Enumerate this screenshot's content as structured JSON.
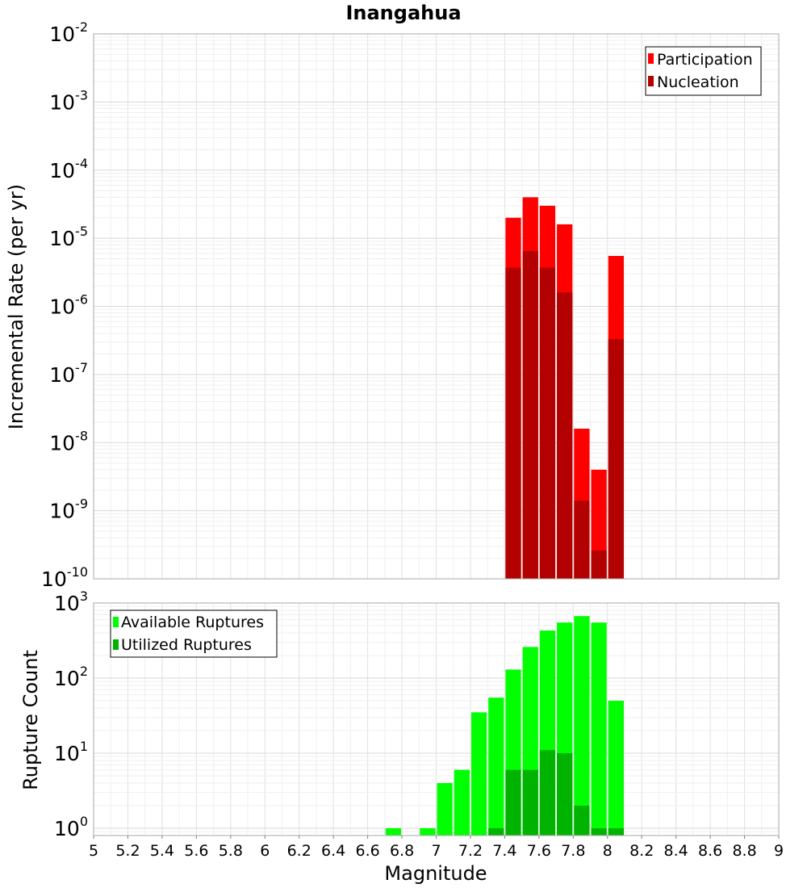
{
  "chart_data": [
    {
      "type": "bar",
      "scale": "log",
      "title": "Inangahua",
      "xlabel": "",
      "ylabel": "Incremental Rate (per yr)",
      "xlim": [
        5,
        9
      ],
      "ylim": [
        1e-10,
        0.01
      ],
      "grid": true,
      "bar_width": 0.1,
      "y_ticks": [
        {
          "base": "10",
          "exp": "-2"
        },
        {
          "base": "10",
          "exp": "-3"
        },
        {
          "base": "10",
          "exp": "-4"
        },
        {
          "base": "10",
          "exp": "-5"
        },
        {
          "base": "10",
          "exp": "-6"
        },
        {
          "base": "10",
          "exp": "-7"
        },
        {
          "base": "10",
          "exp": "-8"
        },
        {
          "base": "10",
          "exp": "-9"
        },
        {
          "base": "10",
          "exp": "-10"
        }
      ],
      "legend_position": "top-right",
      "series": [
        {
          "name": "Participation",
          "color": "#ff0000",
          "x": [
            7.45,
            7.55,
            7.65,
            7.75,
            7.85,
            7.95,
            8.05
          ],
          "values": [
            2e-05,
            4e-05,
            3e-05,
            1.6e-05,
            1.6e-08,
            4e-09,
            5.5e-06
          ]
        },
        {
          "name": "Nucleation",
          "color": "#b30000",
          "x": [
            7.45,
            7.55,
            7.65,
            7.75,
            7.85,
            7.95,
            8.05
          ],
          "values": [
            3.7e-06,
            6.5e-06,
            3.7e-06,
            1.6e-06,
            1.4e-09,
            2.6e-10,
            3.3e-07
          ]
        }
      ]
    },
    {
      "type": "bar",
      "scale": "log",
      "title": "",
      "xlabel": "Magnitude",
      "ylabel": "Rupture Count",
      "xlim": [
        5,
        9
      ],
      "ylim": [
        0.8,
        1000
      ],
      "grid": true,
      "bar_width": 0.1,
      "x_ticks": [
        "5",
        "5.2",
        "5.4",
        "5.6",
        "5.8",
        "6",
        "6.2",
        "6.4",
        "6.6",
        "6.8",
        "7",
        "7.2",
        "7.4",
        "7.6",
        "7.8",
        "8",
        "8.2",
        "8.4",
        "8.6",
        "8.8",
        "9"
      ],
      "y_ticks": [
        {
          "base": "10",
          "exp": "3"
        },
        {
          "base": "10",
          "exp": "2"
        },
        {
          "base": "10",
          "exp": "1"
        },
        {
          "base": "10",
          "exp": "0"
        }
      ],
      "legend_position": "top-left",
      "series": [
        {
          "name": "Available Ruptures",
          "color": "#00ff00",
          "x": [
            6.75,
            6.95,
            7.05,
            7.15,
            7.25,
            7.35,
            7.45,
            7.55,
            7.65,
            7.75,
            7.85,
            7.95,
            8.05
          ],
          "values": [
            1,
            1,
            4,
            6,
            35,
            55,
            130,
            260,
            430,
            550,
            670,
            550,
            50
          ]
        },
        {
          "name": "Utilized Ruptures",
          "color": "#00b300",
          "x": [
            7.35,
            7.45,
            7.55,
            7.65,
            7.75,
            7.85,
            7.95,
            8.05
          ],
          "values": [
            1,
            6,
            6,
            11,
            10,
            2,
            1,
            1
          ]
        }
      ]
    }
  ]
}
